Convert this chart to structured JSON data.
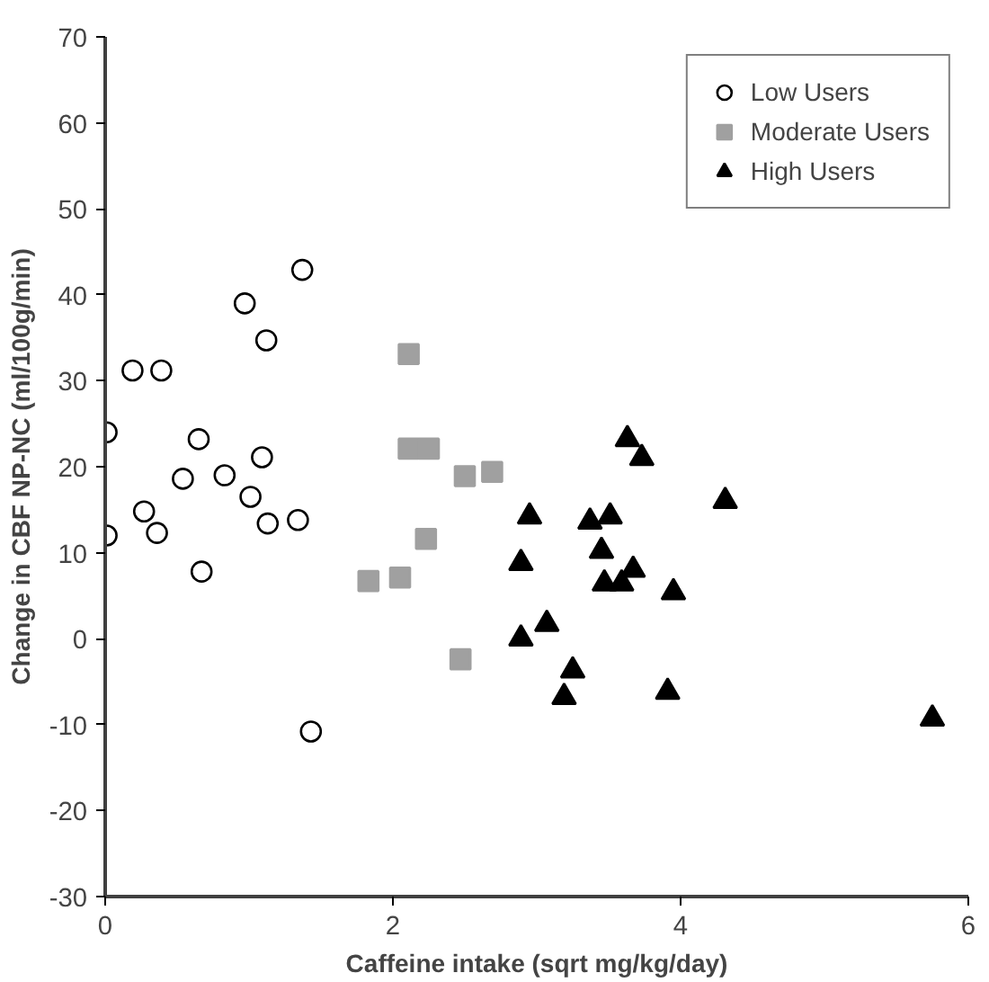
{
  "chart_data": {
    "type": "scatter",
    "xlabel": "Caffeine intake (sqrt mg/kg/day)",
    "ylabel": "Change in CBF NP-NC (ml/100g/min)",
    "xlim": [
      0,
      6
    ],
    "xticks": [
      0,
      2,
      4,
      6
    ],
    "ylim": [
      -30,
      70
    ],
    "yticks": [
      -30,
      -20,
      -10,
      0,
      10,
      20,
      30,
      40,
      50,
      60,
      70
    ],
    "grid": false,
    "legend": "top right",
    "series": [
      {
        "name": "Low Users",
        "color": "#ffffff",
        "marker": "circle",
        "x": [
          1.37,
          0.97,
          1.12,
          0.19,
          0.39,
          0.01,
          0.65,
          1.09,
          0.54,
          0.83,
          1.01,
          0.27,
          0.36,
          0.01,
          1.13,
          1.34,
          0.67,
          1.43
        ],
        "values": [
          42.9,
          39.0,
          34.7,
          31.2,
          31.2,
          24.0,
          23.2,
          21.1,
          18.6,
          19.0,
          16.5,
          14.8,
          12.3,
          12.0,
          13.4,
          13.8,
          7.8,
          -10.8
        ]
      },
      {
        "name": "Moderate Users",
        "color": "#a0a0a0",
        "marker": "square",
        "x": [
          2.11,
          2.11,
          2.25,
          2.5,
          2.69,
          2.23,
          1.83,
          2.05,
          2.47
        ],
        "values": [
          33.1,
          22.1,
          22.1,
          18.9,
          19.4,
          11.6,
          6.7,
          7.1,
          -2.4
        ]
      },
      {
        "name": "High Users",
        "color": "#000000",
        "marker": "triangle",
        "x": [
          2.95,
          2.89,
          2.89,
          3.07,
          3.63,
          3.73,
          4.31,
          3.37,
          3.51,
          3.45,
          3.47,
          3.59,
          3.67,
          3.95,
          3.25,
          3.19,
          3.91,
          5.75
        ],
        "values": [
          14.2,
          8.8,
          0,
          1.7,
          23.2,
          21.0,
          16.0,
          13.6,
          14.2,
          10.2,
          6.4,
          6.4,
          8.0,
          5.4,
          -3.7,
          -6.8,
          -6.2,
          -9.3
        ]
      }
    ]
  }
}
